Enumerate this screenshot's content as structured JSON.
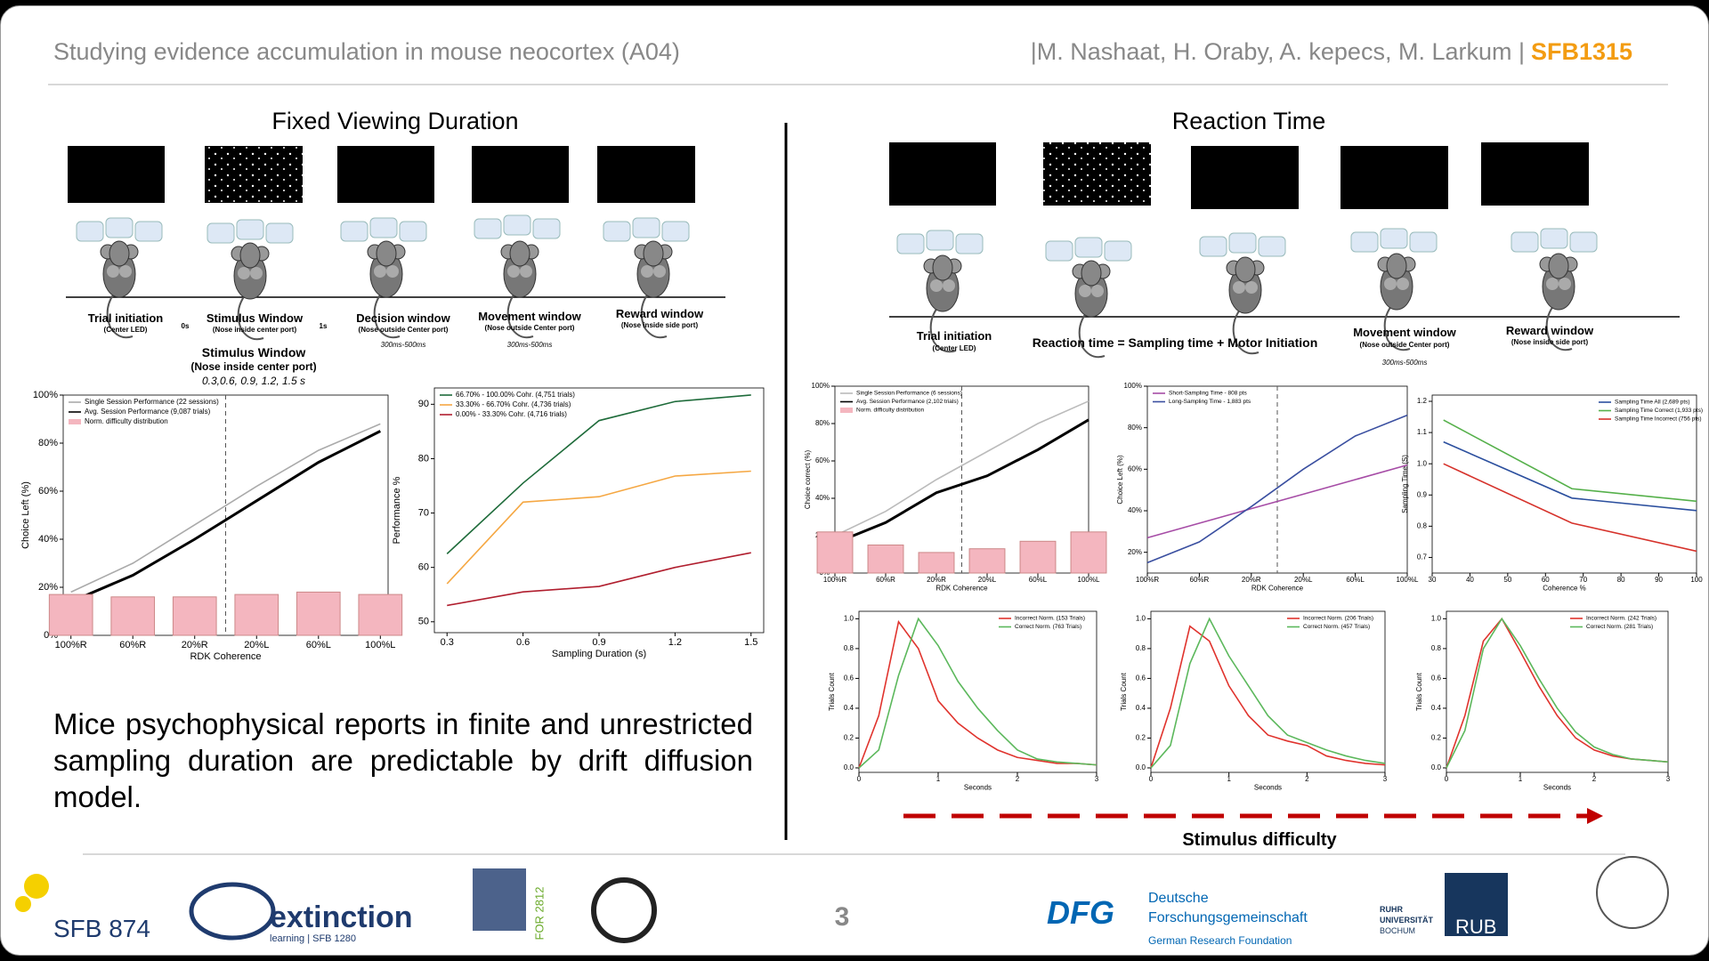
{
  "header": {
    "title": "Studying evidence accumulation in mouse neocortex (A04)",
    "authors": "|M. Nashaat, H. Oraby, A. kepecs, M. Larkum |",
    "project": "SFB1315"
  },
  "left": {
    "title": "Fixed Viewing Duration",
    "timeline": [
      {
        "label": "Trial initiation",
        "sub": "(Center LED)"
      },
      {
        "label": "Stimulus Window",
        "sub": "(Nose inside  center port)"
      },
      {
        "label": "Decision window",
        "sub": "(Nose outside Center port)",
        "time": "300ms-500ms"
      },
      {
        "label": "Movement window",
        "sub": "(Nose outside Center port)",
        "time": "300ms-500ms"
      },
      {
        "label": "Reward window",
        "sub": "(Nose inside side port)"
      }
    ],
    "marks": [
      "0s",
      "1s"
    ],
    "stimulus": {
      "title": "Stimulus Window",
      "sub": "(Nose inside  center port)",
      "durations": "0.3,0.6, 0.9, 1.2, 1.5 s"
    },
    "conclusion": "Mice psychophysical reports in finite and unrestricted sampling duration are predictable by drift diffusion model."
  },
  "right": {
    "title": "Reaction Time",
    "timeline": [
      {
        "label": "Trial initiation",
        "sub": "(Center LED)"
      },
      {
        "label": "Reaction time = Sampling time + Motor Initiation"
      },
      {
        "label": "Movement window",
        "sub": "(Nose outside Center port)",
        "time": "300ms-500ms"
      },
      {
        "label": "Reward window",
        "sub": "(Nose inside side port)"
      }
    ],
    "difficulty": "Stimulus difficulty"
  },
  "footer": {
    "page": "3",
    "sfb874": "SFB 874",
    "extinction": "extinction",
    "extinction_sub": "learning | SFB 1280",
    "for2812": "FOR 2812",
    "dfg": "DFG",
    "dfg_lines": [
      "Deutsche",
      "Forschungsgemeinschaft",
      "German Research Foundation"
    ],
    "rub_lines": [
      "RUHR",
      "UNIVERSITÄT",
      "BOCHUM"
    ],
    "rub": "RUB"
  },
  "chart_data": [
    {
      "type": "line",
      "xlabel": "RDK Coherence",
      "ylabel": "Choice Left (%)",
      "legend": "upper left",
      "x": [
        -100,
        -60,
        -20,
        20,
        60,
        100
      ],
      "xlim": [
        -105,
        105
      ],
      "xticks": [
        {
          "value": -100,
          "label": "100%R"
        },
        {
          "value": -60,
          "label": "60%R"
        },
        {
          "value": -20,
          "label": "20%R"
        },
        {
          "value": 20,
          "label": "20%L"
        },
        {
          "value": 60,
          "label": "60%L"
        },
        {
          "value": 100,
          "label": "100%L"
        }
      ],
      "ylim": [
        0,
        100
      ],
      "yticks": [
        {
          "value": 0,
          "label": "0%"
        },
        {
          "value": 20,
          "label": "20%"
        },
        {
          "value": 40,
          "label": "40%"
        },
        {
          "value": 60,
          "label": "60%"
        },
        {
          "value": 80,
          "label": "80%"
        },
        {
          "value": 100,
          "label": "100%"
        }
      ],
      "series": [
        {
          "name": "Single Session Performance (22 sessions)",
          "color": "#aaaaaa",
          "values": [
            18,
            30,
            46,
            62,
            77,
            88
          ]
        },
        {
          "name": "Avg. Session Performance (9,087 trials)",
          "color": "#000000",
          "values": [
            14,
            25,
            40,
            56,
            72,
            85
          ]
        },
        {
          "name": "Norm. difficulty distribution",
          "type": "bar",
          "color": "#f4b6bf",
          "values": [
            17,
            16,
            16,
            17,
            18,
            17
          ]
        }
      ]
    },
    {
      "type": "line",
      "xlabel": "Sampling Duration (s)",
      "ylabel": "Performance %",
      "legend": "upper left",
      "x": [
        0.3,
        0.6,
        0.9,
        1.2,
        1.5
      ],
      "xlim": [
        0.25,
        1.55
      ],
      "xticks": [
        0.3,
        0.6,
        0.9,
        1.2,
        1.5
      ],
      "ylim": [
        48,
        93
      ],
      "yticks": [
        50,
        60,
        70,
        80,
        90
      ],
      "series": [
        {
          "name": "66.70% - 100.00% Cohr. (4,751 trials)",
          "color": "#1e6b3a",
          "values": [
            62.5,
            75.5,
            87,
            90.5,
            91.7
          ]
        },
        {
          "name": "33.30% - 66.70% Cohr. (4,736 trials)",
          "color": "#f5a742",
          "values": [
            57,
            72,
            73,
            76.8,
            77.7
          ]
        },
        {
          "name": "0.00% - 33.30% Cohr. (4,716 trials)",
          "color": "#b01e2e",
          "values": [
            53,
            55.5,
            56.5,
            60,
            62.7
          ]
        }
      ]
    },
    {
      "type": "line",
      "xlabel": "RDK Coherence",
      "ylabel": "Choice correct (%)",
      "legend": "upper left",
      "x": [
        -100,
        -60,
        -20,
        20,
        60,
        100
      ],
      "xlim": [
        -100,
        100
      ],
      "xticks": [
        {
          "value": -100,
          "label": "100%R"
        },
        {
          "value": -60,
          "label": "60%R"
        },
        {
          "value": -20,
          "label": "20%R"
        },
        {
          "value": 20,
          "label": "20%L"
        },
        {
          "value": 60,
          "label": "60%L"
        },
        {
          "value": 100,
          "label": "100%L"
        }
      ],
      "ylim": [
        0,
        100
      ],
      "yticks": [
        {
          "value": 0,
          "label": "0%"
        },
        {
          "value": 20,
          "label": "20%"
        },
        {
          "value": 40,
          "label": "40%"
        },
        {
          "value": 60,
          "label": "60%"
        },
        {
          "value": 80,
          "label": "80%"
        },
        {
          "value": 100,
          "label": "100%"
        }
      ],
      "series": [
        {
          "name": "Single Session Performance (6 sessions)",
          "color": "#bbbbbb",
          "values": [
            20,
            33,
            50,
            65,
            80,
            92
          ]
        },
        {
          "name": "Avg. Session Performance (2,102 trials)",
          "color": "#000000",
          "values": [
            16,
            27,
            43,
            52,
            66,
            82
          ]
        },
        {
          "name": "Norm. difficulty distribution",
          "type": "bar",
          "color": "#f4b6bf",
          "values": [
            22,
            15,
            11,
            13,
            17,
            22
          ]
        }
      ]
    },
    {
      "type": "line",
      "xlabel": "RDK Coherence",
      "ylabel": "Choice Left (%)",
      "legend": "upper left",
      "x": [
        -100,
        -60,
        -20,
        20,
        60,
        100
      ],
      "xlim": [
        -100,
        100
      ],
      "xticks": [
        {
          "value": -100,
          "label": "100%R"
        },
        {
          "value": -60,
          "label": "60%R"
        },
        {
          "value": -20,
          "label": "20%R"
        },
        {
          "value": 20,
          "label": "20%L"
        },
        {
          "value": 60,
          "label": "60%L"
        },
        {
          "value": 100,
          "label": "100%L"
        }
      ],
      "ylim": [
        10,
        100
      ],
      "yticks": [
        {
          "value": 20,
          "label": "20%"
        },
        {
          "value": 40,
          "label": "40%"
        },
        {
          "value": 60,
          "label": "60%"
        },
        {
          "value": 80,
          "label": "80%"
        },
        {
          "value": 100,
          "label": "100%"
        }
      ],
      "series": [
        {
          "name": "Short-Sampling Time - 808 pts",
          "color": "#a64ca6",
          "values": [
            27,
            34,
            41,
            48,
            55,
            62
          ]
        },
        {
          "name": "Long-Sampling Time - 1,883 pts",
          "color": "#3a4fa0",
          "values": [
            15,
            25,
            42,
            60,
            76,
            86
          ]
        }
      ]
    },
    {
      "type": "line",
      "xlabel": "Coherence %",
      "ylabel": "Sampling Time (S)",
      "legend": "upper right",
      "x": [
        33,
        67,
        100
      ],
      "xlim": [
        30,
        100
      ],
      "xticks": [
        30,
        40,
        50,
        60,
        70,
        80,
        90,
        100
      ],
      "ylim": [
        0.65,
        1.22
      ],
      "yticks": [
        0.7,
        0.8,
        0.9,
        {
          "value": 1.0,
          "label": "1.0"
        },
        1.1,
        1.2
      ],
      "series": [
        {
          "name": "Sampling Time All (2,689 pts)",
          "color": "#2b4f9e",
          "values": [
            1.07,
            0.89,
            0.85
          ]
        },
        {
          "name": "Sampling Time Correct (1,933 pts)",
          "color": "#55b04a",
          "values": [
            1.14,
            0.92,
            0.88
          ]
        },
        {
          "name": "Sampling Time Incorrect (756 pts)",
          "color": "#d6322b",
          "values": [
            1.0,
            0.81,
            0.72
          ]
        }
      ]
    },
    {
      "type": "line",
      "xlabel": "Seconds",
      "ylabel": "Trials Count",
      "legend": "upper right",
      "x": [
        0,
        0.25,
        0.5,
        0.75,
        1,
        1.25,
        1.5,
        1.75,
        2,
        2.25,
        2.5,
        2.75,
        3
      ],
      "xlim": [
        0,
        3
      ],
      "xticks": [
        0,
        1,
        2,
        3
      ],
      "ylim": [
        -0.03,
        1.05
      ],
      "yticks": [
        {
          "value": 0,
          "label": "0.0"
        },
        0.2,
        0.4,
        0.6,
        0.8,
        {
          "value": 1,
          "label": "1.0"
        }
      ],
      "series": [
        {
          "name": "Incorrect Norm. (153 Trials)",
          "color": "#e0332d",
          "values": [
            0,
            0.35,
            0.98,
            0.8,
            0.45,
            0.3,
            0.2,
            0.12,
            0.07,
            0.05,
            0.03,
            0.03,
            0.02
          ]
        },
        {
          "name": "Correct Norm. (763 Trials)",
          "color": "#5cb85c",
          "values": [
            0,
            0.12,
            0.62,
            1.0,
            0.82,
            0.58,
            0.4,
            0.25,
            0.12,
            0.06,
            0.04,
            0.03,
            0.02
          ]
        }
      ]
    },
    {
      "type": "line",
      "xlabel": "Seconds",
      "ylabel": "Trials Count",
      "legend": "upper right",
      "x": [
        0,
        0.25,
        0.5,
        0.75,
        1,
        1.25,
        1.5,
        1.75,
        2,
        2.25,
        2.5,
        2.75,
        3
      ],
      "xlim": [
        0,
        3
      ],
      "xticks": [
        0,
        1,
        2,
        3
      ],
      "ylim": [
        -0.03,
        1.05
      ],
      "yticks": [
        {
          "value": 0,
          "label": "0.0"
        },
        0.2,
        0.4,
        0.6,
        0.8,
        {
          "value": 1,
          "label": "1.0"
        }
      ],
      "series": [
        {
          "name": "Incorrect Norm. (206 Trials)",
          "color": "#e0332d",
          "values": [
            0,
            0.4,
            0.95,
            0.85,
            0.55,
            0.35,
            0.22,
            0.18,
            0.15,
            0.08,
            0.05,
            0.03,
            0.02
          ]
        },
        {
          "name": "Correct Norm. (457 Trials)",
          "color": "#5cb85c",
          "values": [
            0,
            0.15,
            0.7,
            1.0,
            0.75,
            0.55,
            0.35,
            0.22,
            0.17,
            0.12,
            0.08,
            0.05,
            0.03
          ]
        }
      ]
    },
    {
      "type": "line",
      "xlabel": "Seconds",
      "ylabel": "Trials Count",
      "legend": "upper right",
      "x": [
        0,
        0.25,
        0.5,
        0.75,
        1,
        1.25,
        1.5,
        1.75,
        2,
        2.25,
        2.5,
        2.75,
        3
      ],
      "xlim": [
        0,
        3
      ],
      "xticks": [
        0,
        1,
        2,
        3
      ],
      "ylim": [
        -0.03,
        1.05
      ],
      "yticks": [
        {
          "value": 0,
          "label": "0.0"
        },
        0.2,
        0.4,
        0.6,
        0.8,
        {
          "value": 1,
          "label": "1.0"
        }
      ],
      "series": [
        {
          "name": "Incorrect Norm. (242 Trials)",
          "color": "#e0332d",
          "values": [
            0,
            0.35,
            0.85,
            1.0,
            0.78,
            0.55,
            0.35,
            0.2,
            0.12,
            0.08,
            0.06,
            0.05,
            0.04
          ]
        },
        {
          "name": "Correct Norm. (281 Trials)",
          "color": "#5cb85c",
          "values": [
            0,
            0.25,
            0.8,
            1.0,
            0.82,
            0.6,
            0.4,
            0.24,
            0.14,
            0.09,
            0.06,
            0.05,
            0.04
          ]
        }
      ]
    }
  ]
}
